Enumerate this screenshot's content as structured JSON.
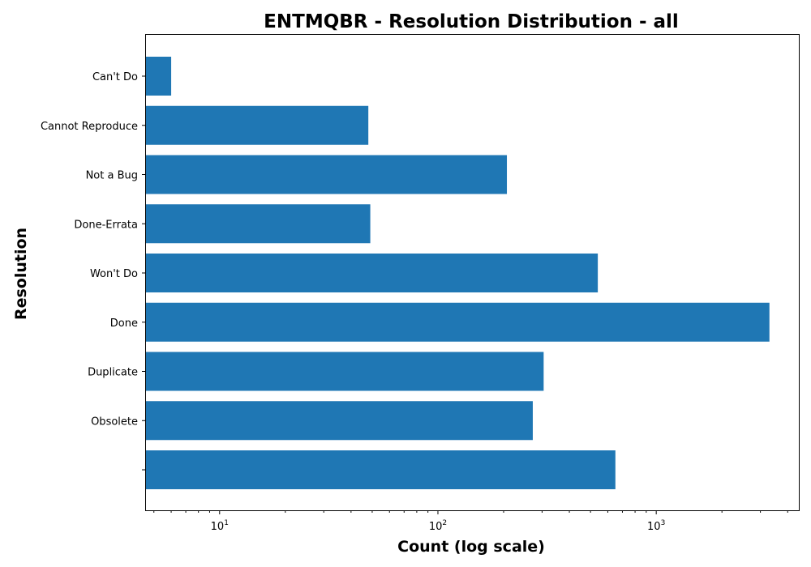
{
  "chart_data": {
    "type": "bar",
    "orientation": "horizontal",
    "title": "ENTMQBR - Resolution Distribution - all",
    "xlabel": "Count (log scale)",
    "ylabel": "Resolution",
    "xscale": "log",
    "xlim": [
      4.6,
      4500
    ],
    "x_ticks": [
      {
        "base": "10",
        "exp": "1",
        "value": 10
      },
      {
        "base": "10",
        "exp": "2",
        "value": 100
      },
      {
        "base": "10",
        "exp": "3",
        "value": 1000
      }
    ],
    "categories": [
      "Can't Do",
      "Cannot Reproduce",
      "Not a Bug",
      "Done-Errata",
      "Won't Do",
      "Done",
      "Duplicate",
      "Obsolete",
      ""
    ],
    "values": [
      6,
      48,
      207,
      49,
      540,
      3300,
      305,
      272,
      650
    ],
    "bar_color": "#1f77b4",
    "grid": false,
    "legend": "none"
  }
}
